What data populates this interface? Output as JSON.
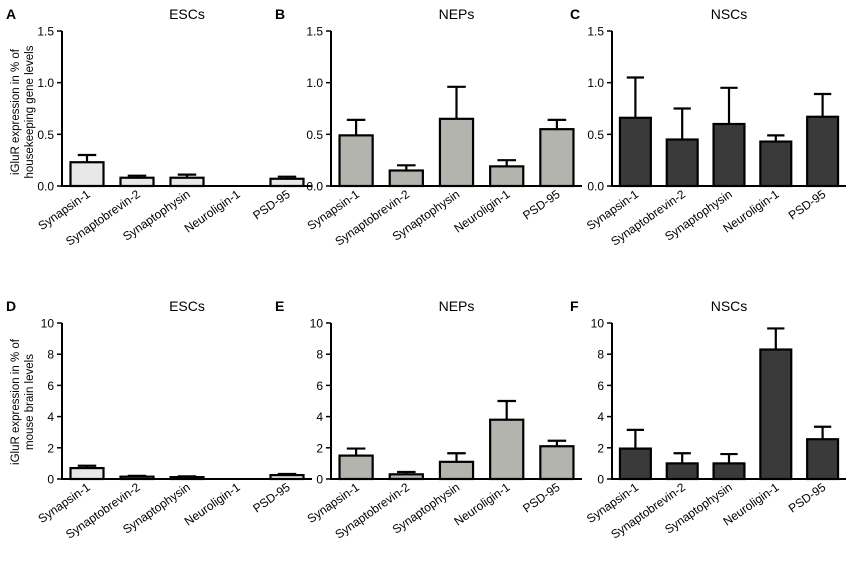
{
  "figure": {
    "ylabel_top": [
      "iGluR expression in % of",
      "housekeeping gene levels"
    ],
    "ylabel_bottom": [
      "iGluR expression in % of",
      "mouse brain levels"
    ],
    "colors": {
      "ESCs": "#e8e8e8",
      "NEPs": "#b4b4ae",
      "NSCs": "#3a3a3a",
      "axis": "#000000"
    }
  },
  "chart_data": [
    {
      "panel": "A",
      "title": "ESCs",
      "type": "bar",
      "fill": "ESCs",
      "categories": [
        "Synapsin-1",
        "Synaptobrevin-2",
        "Synaptophysin",
        "Neuroligin-1",
        "PSD-95"
      ],
      "values": [
        0.23,
        0.08,
        0.08,
        0.0,
        0.07
      ],
      "errors": [
        0.07,
        0.02,
        0.03,
        0.0,
        0.02
      ],
      "ylim": [
        0,
        1.5
      ],
      "ticks": [
        0.0,
        0.5,
        1.0,
        1.5
      ],
      "tick_labels": [
        "0.0",
        "0.5",
        "1.0",
        "1.5"
      ]
    },
    {
      "panel": "B",
      "title": "NEPs",
      "type": "bar",
      "fill": "NEPs",
      "categories": [
        "Synapsin-1",
        "Synaptobrevin-2",
        "Synaptophysin",
        "Neuroligin-1",
        "PSD-95"
      ],
      "values": [
        0.49,
        0.15,
        0.65,
        0.19,
        0.55
      ],
      "errors": [
        0.15,
        0.05,
        0.31,
        0.06,
        0.09
      ],
      "ylim": [
        0,
        1.5
      ],
      "ticks": [
        0.0,
        0.5,
        1.0,
        1.5
      ],
      "tick_labels": [
        "0.0",
        "0.5",
        "1.0",
        "1.5"
      ]
    },
    {
      "panel": "C",
      "title": "NSCs",
      "type": "bar",
      "fill": "NSCs",
      "categories": [
        "Synapsin-1",
        "Synaptobrevin-2",
        "Synaptophysin",
        "Neuroligin-1",
        "PSD-95"
      ],
      "values": [
        0.66,
        0.45,
        0.6,
        0.43,
        0.67
      ],
      "errors": [
        0.39,
        0.3,
        0.35,
        0.06,
        0.22
      ],
      "ylim": [
        0,
        1.5
      ],
      "ticks": [
        0.0,
        0.5,
        1.0,
        1.5
      ],
      "tick_labels": [
        "0.0",
        "0.5",
        "1.0",
        "1.5"
      ]
    },
    {
      "panel": "D",
      "title": "ESCs",
      "type": "bar",
      "fill": "ESCs",
      "categories": [
        "Synapsin-1",
        "Synaptobrevin-2",
        "Synaptophysin",
        "Neuroligin-1",
        "PSD-95"
      ],
      "values": [
        0.7,
        0.15,
        0.12,
        0.0,
        0.25
      ],
      "errors": [
        0.15,
        0.05,
        0.05,
        0.0,
        0.07
      ],
      "ylim": [
        0,
        10
      ],
      "ticks": [
        0,
        2,
        4,
        6,
        8,
        10
      ],
      "tick_labels": [
        "0",
        "2",
        "4",
        "6",
        "8",
        "10"
      ]
    },
    {
      "panel": "E",
      "title": "NEPs",
      "type": "bar",
      "fill": "NEPs",
      "categories": [
        "Synapsin-1",
        "Synaptobrevin-2",
        "Synaptophysin",
        "Neuroligin-1",
        "PSD-95"
      ],
      "values": [
        1.5,
        0.3,
        1.1,
        3.8,
        2.1
      ],
      "errors": [
        0.45,
        0.15,
        0.55,
        1.2,
        0.35
      ],
      "ylim": [
        0,
        10
      ],
      "ticks": [
        0,
        2,
        4,
        6,
        8,
        10
      ],
      "tick_labels": [
        "0",
        "2",
        "4",
        "6",
        "8",
        "10"
      ]
    },
    {
      "panel": "F",
      "title": "NSCs",
      "type": "bar",
      "fill": "NSCs",
      "categories": [
        "Synapsin-1",
        "Synaptobrevin-2",
        "Synaptophysin",
        "Neuroligin-1",
        "PSD-95"
      ],
      "values": [
        1.95,
        1.0,
        1.0,
        8.3,
        2.55
      ],
      "errors": [
        1.2,
        0.65,
        0.6,
        1.35,
        0.8
      ],
      "ylim": [
        0,
        10
      ],
      "ticks": [
        0,
        2,
        4,
        6,
        8,
        10
      ],
      "tick_labels": [
        "0",
        "2",
        "4",
        "6",
        "8",
        "10"
      ]
    }
  ]
}
